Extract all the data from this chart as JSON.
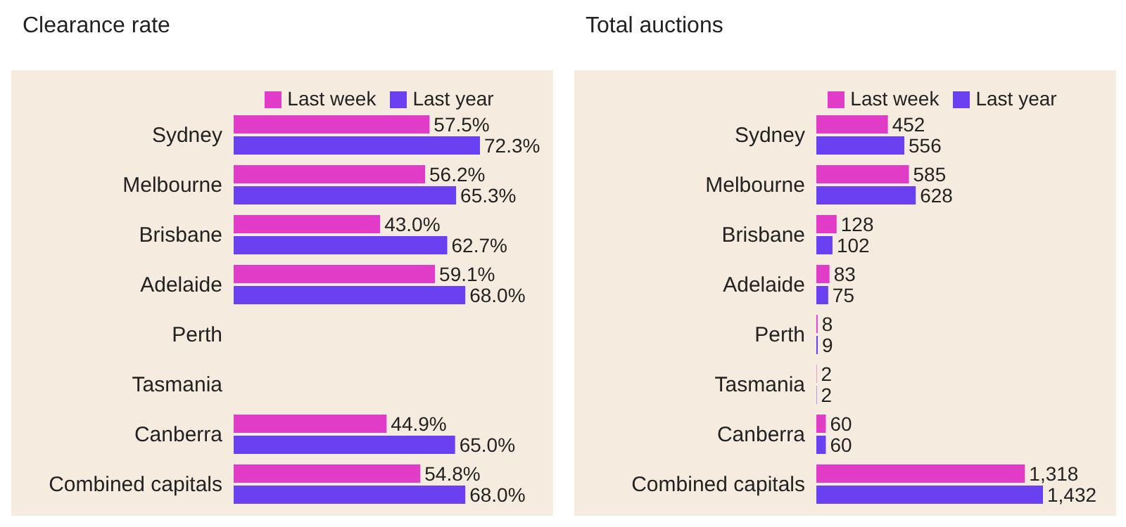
{
  "chart_data": [
    {
      "type": "bar",
      "orientation": "horizontal",
      "title": "Clearance rate",
      "categories": [
        "Sydney",
        "Melbourne",
        "Brisbane",
        "Adelaide",
        "Perth",
        "Tasmania",
        "Canberra",
        "Combined capitals"
      ],
      "legend": "top",
      "grid": false,
      "series": [
        {
          "name": "Last week",
          "color": "#e03cc8",
          "values": [
            57.5,
            56.2,
            43.0,
            59.1,
            null,
            null,
            44.9,
            54.8
          ],
          "value_labels": [
            "57.5%",
            "56.2%",
            "43.0%",
            "59.1%",
            null,
            null,
            "44.9%",
            "54.8%"
          ]
        },
        {
          "name": "Last year",
          "color": "#6a40f0",
          "values": [
            72.3,
            65.3,
            62.7,
            68.0,
            null,
            null,
            65.0,
            68.0
          ],
          "value_labels": [
            "72.3%",
            "65.3%",
            "62.7%",
            "68.0%",
            null,
            null,
            "65.0%",
            "68.0%"
          ]
        }
      ]
    },
    {
      "type": "bar",
      "orientation": "horizontal",
      "title": "Total auctions",
      "categories": [
        "Sydney",
        "Melbourne",
        "Brisbane",
        "Adelaide",
        "Perth",
        "Tasmania",
        "Canberra",
        "Combined capitals"
      ],
      "legend": "top",
      "grid": false,
      "series": [
        {
          "name": "Last week",
          "color": "#e03cc8",
          "values": [
            452,
            585,
            128,
            83,
            8,
            2,
            60,
            1318
          ],
          "value_labels": [
            "452",
            "585",
            "128",
            "83",
            "8",
            "2",
            "60",
            "1,318"
          ]
        },
        {
          "name": "Last year",
          "color": "#6a40f0",
          "values": [
            556,
            628,
            102,
            75,
            9,
            2,
            60,
            1432
          ],
          "value_labels": [
            "556",
            "628",
            "102",
            "75",
            "9",
            "2",
            "60",
            "1,432"
          ]
        }
      ]
    }
  ]
}
